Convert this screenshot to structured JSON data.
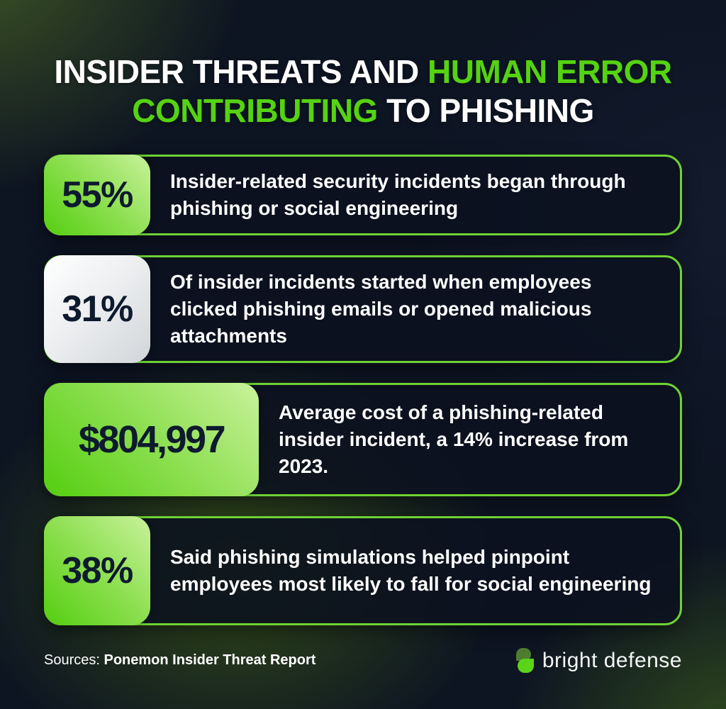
{
  "title": {
    "l1_white": "INSIDER THREATS AND",
    "l1_green": "HUMAN ERROR",
    "l2_green": "CONTRIBUTING",
    "l2_white": "TO PHISHING"
  },
  "stats": [
    {
      "value": "55%",
      "badge_style": "green",
      "text": "Insider-related security incidents began through phishing or social engineering"
    },
    {
      "value": "31%",
      "badge_style": "white",
      "text": "Of insider incidents started when employees clicked phishing emails or opened malicious attachments"
    },
    {
      "value": "$804,997",
      "badge_style": "green-wide",
      "text": "Average cost of a phishing-related insider incident, a 14% increase from 2023."
    },
    {
      "value": "38%",
      "badge_style": "green",
      "text": "Said phishing simulations helped pinpoint employees most likely to fall for social engineering"
    }
  ],
  "footer": {
    "sources_label": "Sources:",
    "sources_value": "Ponemon Insider Threat Report",
    "logo_text": "bright defense"
  },
  "icons": {
    "logo_icon": "bright-defense-leaf-icon"
  },
  "colors": {
    "accent_green": "#55D312",
    "border_green": "#6ED234",
    "badge_green_start": "#54CE10",
    "badge_green_end": "#C9F29C",
    "badge_white": "#EDEFF1",
    "card_navy": "#0B111F",
    "background_navy": "#0D1422",
    "stat_text_dark": "#0E1A2E",
    "text_white": "#FFFFFF",
    "leaf_dark_green": "#4E7D2F",
    "leaf_bright_green": "#5BD318"
  },
  "chart_data": {
    "type": "table",
    "title": "Insider Threats and Human Error Contributing to Phishing",
    "columns": [
      "statistic",
      "description"
    ],
    "rows": [
      [
        "55%",
        "Insider-related security incidents began through phishing or social engineering"
      ],
      [
        "31%",
        "Of insider incidents started when employees clicked phishing emails or opened malicious attachments"
      ],
      [
        "$804,997",
        "Average cost of a phishing-related insider incident, a 14% increase from 2023."
      ],
      [
        "38%",
        "Said phishing simulations helped pinpoint employees most likely to fall for social engineering"
      ]
    ],
    "source": "Ponemon Insider Threat Report"
  }
}
